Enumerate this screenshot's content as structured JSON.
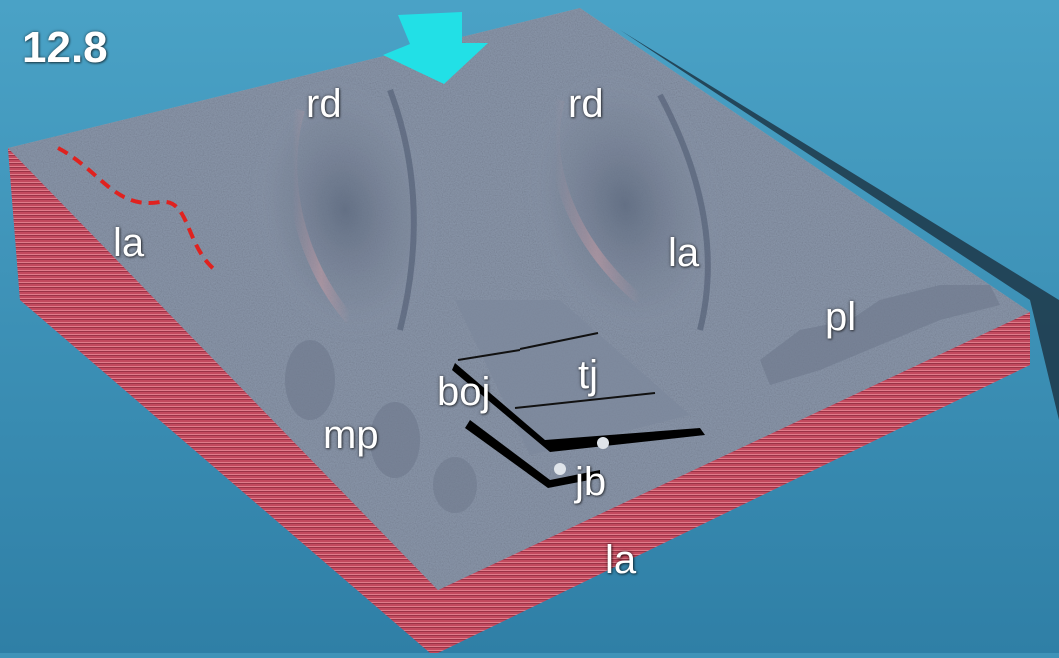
{
  "figure_number": "12.8",
  "labels": {
    "rd_left": "rd",
    "rd_right": "rd",
    "la_left": "la",
    "la_right": "la",
    "la_bottom": "la",
    "pl": "pl",
    "tj": "tj",
    "boj": "boj",
    "mp": "mp",
    "jb": "jb"
  },
  "colors": {
    "background": "#3f93b8",
    "arrow": "#22e0e6",
    "surface": "#8b97ab",
    "strata": "#c0485c",
    "boundary_line": "#e0221f"
  }
}
